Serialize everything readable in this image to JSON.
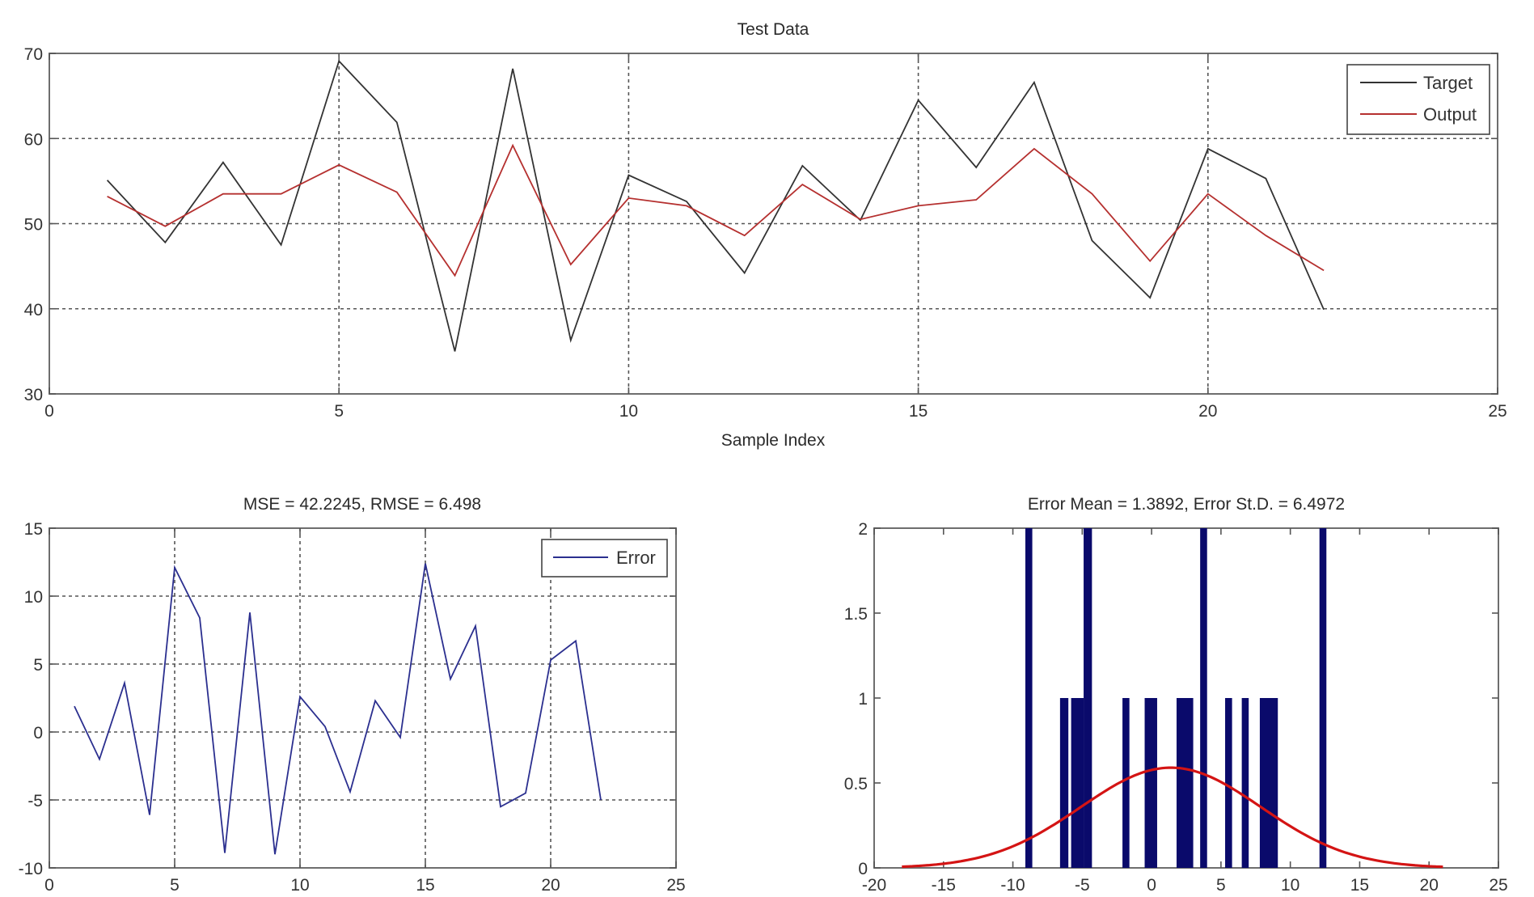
{
  "figure": {
    "background": "#ffffff",
    "colors": {
      "target": "#333333",
      "output": "#b5302f",
      "error": "#2b2f8f",
      "bars": "#0a0a6b",
      "fit": "#d41414"
    }
  },
  "chart_data": [
    {
      "id": "test-data",
      "type": "line",
      "title": "Test Data",
      "xlabel": "Sample Index",
      "ylabel": "",
      "xlim": [
        0,
        25
      ],
      "ylim": [
        30,
        70
      ],
      "xticks": [
        0,
        5,
        10,
        15,
        20,
        25
      ],
      "yticks": [
        30,
        40,
        50,
        60,
        70
      ],
      "grid": true,
      "legend_position": "top-right",
      "x": [
        1,
        2,
        3,
        4,
        5,
        6,
        7,
        8,
        9,
        10,
        11,
        12,
        13,
        14,
        15,
        16,
        17,
        18,
        19,
        20,
        21,
        22
      ],
      "series": [
        {
          "name": "Target",
          "color": "#333333",
          "values": [
            55.1,
            47.8,
            57.2,
            47.5,
            69.1,
            61.9,
            35.0,
            68.2,
            36.3,
            55.7,
            52.6,
            44.2,
            56.8,
            50.4,
            64.5,
            56.6,
            66.6,
            48.0,
            41.3,
            58.8,
            55.3,
            39.9
          ]
        },
        {
          "name": "Output",
          "color": "#b5302f",
          "values": [
            53.2,
            49.7,
            53.5,
            53.5,
            56.9,
            53.7,
            43.9,
            59.2,
            45.2,
            53.0,
            52.1,
            48.6,
            54.6,
            50.5,
            52.1,
            52.8,
            58.8,
            53.5,
            45.6,
            53.5,
            48.6,
            44.5
          ]
        }
      ]
    },
    {
      "id": "error-plot",
      "type": "line",
      "title": "MSE = 42.2245, RMSE = 6.498",
      "xlabel": "",
      "ylabel": "",
      "xlim": [
        0,
        25
      ],
      "ylim": [
        -10,
        15
      ],
      "xticks": [
        0,
        5,
        10,
        15,
        20,
        25
      ],
      "yticks": [
        -10,
        -5,
        0,
        5,
        10,
        15
      ],
      "grid": true,
      "legend_position": "top-right",
      "x": [
        1,
        2,
        3,
        4,
        5,
        6,
        7,
        8,
        9,
        10,
        11,
        12,
        13,
        14,
        15,
        16,
        17,
        18,
        19,
        20,
        21,
        22
      ],
      "series": [
        {
          "name": "Error",
          "color": "#2b2f8f",
          "values": [
            1.9,
            -2.0,
            3.6,
            -6.1,
            12.1,
            8.4,
            -8.9,
            8.8,
            -9.0,
            2.6,
            0.4,
            -4.4,
            2.3,
            -0.4,
            12.4,
            3.9,
            7.8,
            -5.5,
            -4.5,
            5.3,
            6.7,
            -5.0
          ]
        }
      ]
    },
    {
      "id": "error-histogram",
      "type": "bar",
      "title": "Error Mean = 1.3892, Error St.D. = 6.4972",
      "xlabel": "",
      "ylabel": "",
      "xlim": [
        -20,
        25
      ],
      "ylim": [
        0,
        2
      ],
      "xticks": [
        -20,
        -15,
        -10,
        -5,
        0,
        5,
        10,
        15,
        20,
        25
      ],
      "yticks": [
        0,
        0.5,
        1,
        1.5,
        2
      ],
      "ytick_labels": [
        "0",
        "0.5",
        "1",
        "1.5",
        "2"
      ],
      "grid": false,
      "bars": [
        {
          "x0": -9.1,
          "x1": -8.6,
          "count": 2
        },
        {
          "x0": -6.6,
          "x1": -6.0,
          "count": 1
        },
        {
          "x0": -5.8,
          "x1": -4.9,
          "count": 1
        },
        {
          "x0": -4.9,
          "x1": -4.3,
          "count": 2
        },
        {
          "x0": -2.1,
          "x1": -1.6,
          "count": 1
        },
        {
          "x0": -0.5,
          "x1": 0.4,
          "count": 1
        },
        {
          "x0": 1.8,
          "x1": 3.0,
          "count": 1
        },
        {
          "x0": 3.5,
          "x1": 4.0,
          "count": 2
        },
        {
          "x0": 5.3,
          "x1": 5.8,
          "count": 1
        },
        {
          "x0": 6.5,
          "x1": 7.0,
          "count": 1
        },
        {
          "x0": 7.8,
          "x1": 9.1,
          "count": 1
        },
        {
          "x0": 12.1,
          "x1": 12.6,
          "count": 2
        }
      ],
      "fit_curve": {
        "name": "Normal fit",
        "color": "#d41414",
        "mean": 1.3892,
        "std": 6.4972,
        "peak": 0.59,
        "x_range": [
          -18,
          21
        ]
      }
    }
  ]
}
